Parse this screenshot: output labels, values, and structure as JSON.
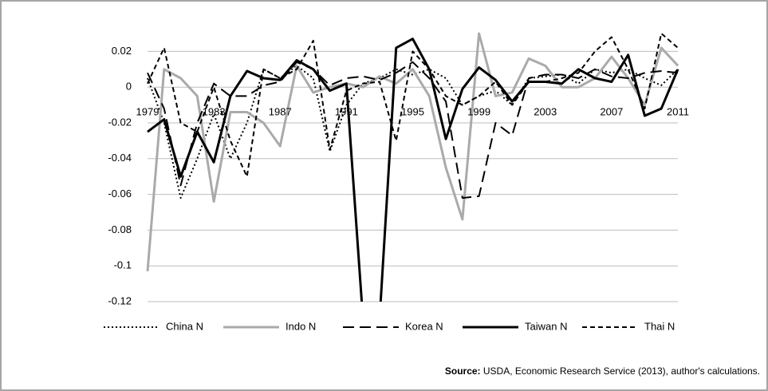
{
  "chart_data": {
    "type": "line",
    "x": [
      1979,
      1980,
      1981,
      1982,
      1983,
      1984,
      1985,
      1986,
      1987,
      1988,
      1989,
      1990,
      1991,
      1992,
      1993,
      1994,
      1995,
      1996,
      1997,
      1998,
      1999,
      2000,
      2001,
      2002,
      2003,
      2004,
      2005,
      2006,
      2007,
      2008,
      2009,
      2010,
      2011
    ],
    "xlim": [
      1979,
      2011
    ],
    "xticks": [
      1979,
      1983,
      1987,
      1991,
      1995,
      1999,
      2003,
      2007,
      2011
    ],
    "ylim": [
      -0.12,
      0.03
    ],
    "yticks": [
      -0.12,
      -0.1,
      -0.08,
      -0.06,
      -0.04,
      -0.02,
      0,
      0.02
    ],
    "grid": true,
    "legend": "bottom",
    "series": [
      {
        "name": "China N",
        "color": "#000000",
        "style": "dotted",
        "values": [
          0.005,
          -0.02,
          -0.062,
          -0.04,
          -0.015,
          -0.04,
          -0.02,
          0.01,
          0.005,
          0.012,
          0.005,
          -0.036,
          -0.01,
          0.002,
          0.005,
          0.01,
          0.007,
          0.01,
          0.005,
          -0.01,
          -0.005,
          -0.002,
          -0.01,
          0.005,
          0.006,
          0.007,
          0.002,
          0.01,
          0.008,
          0.01,
          0.005,
          0.001,
          0.01
        ]
      },
      {
        "name": "Indo N",
        "color": "#aaaaaa",
        "style": "solid",
        "values": [
          -0.103,
          0.01,
          0.005,
          -0.005,
          -0.064,
          -0.014,
          -0.014,
          -0.02,
          -0.033,
          0.012,
          -0.003,
          0,
          0.002,
          0,
          0.006,
          0.002,
          0.01,
          -0.005,
          -0.045,
          -0.074,
          0.03,
          -0.005,
          -0.003,
          0.016,
          0.012,
          0,
          0,
          0.005,
          0.017,
          0.005,
          -0.01,
          0.022,
          0.012
        ]
      },
      {
        "name": "Korea N",
        "color": "#000000",
        "style": "longdash",
        "values": [
          0.008,
          -0.012,
          -0.055,
          -0.02,
          0.002,
          -0.005,
          -0.005,
          0.001,
          0.003,
          0.014,
          0.01,
          0.001,
          0.005,
          0.006,
          0.004,
          0.008,
          0.014,
          0.005,
          -0.008,
          -0.062,
          -0.061,
          -0.02,
          -0.027,
          0.005,
          0.007,
          0.007,
          0.005,
          0.01,
          0.006,
          0.005,
          0.008,
          0.009,
          0.008
        ]
      },
      {
        "name": "Taiwan N",
        "color": "#000000",
        "style": "solid",
        "values": [
          -0.025,
          -0.018,
          -0.05,
          -0.025,
          -0.042,
          -0.005,
          0.009,
          0.005,
          0.004,
          0.015,
          0.01,
          -0.002,
          0.002,
          -0.13,
          -0.13,
          0.022,
          0.027,
          0.01,
          -0.029,
          -0.001,
          0.011,
          0.004,
          -0.008,
          0.003,
          0.003,
          0.002,
          0.01,
          0.005,
          0.003,
          0.018,
          -0.016,
          -0.012,
          0.01
        ]
      },
      {
        "name": "Thai N",
        "color": "#000000",
        "style": "dashed",
        "values": [
          0.002,
          0.022,
          -0.02,
          -0.025,
          0,
          -0.03,
          -0.05,
          0.01,
          0.005,
          0.01,
          0.026,
          -0.035,
          -0.002,
          0.002,
          0.003,
          -0.03,
          0.02,
          0.01,
          -0.005,
          -0.01,
          -0.005,
          0.003,
          -0.01,
          0.003,
          0.003,
          0.005,
          0.008,
          0.02,
          0.028,
          0.01,
          -0.012,
          0.03,
          0.022
        ]
      }
    ],
    "source_label": "Source:",
    "source_text": "USDA, Economic Research Service (2013),  author's calculations."
  }
}
